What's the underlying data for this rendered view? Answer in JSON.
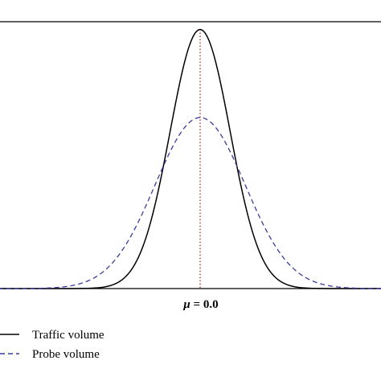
{
  "chart_data": {
    "type": "line",
    "title": "",
    "xlabel": "",
    "ylabel": "",
    "xlim": [
      -3.2,
      3.2
    ],
    "ylim": [
      0,
      1.03
    ],
    "grid": false,
    "annotation": {
      "mean_x": 0.0,
      "symbol": "μ",
      "text": " = 0.0",
      "line_style": "dotted",
      "color": "#8b1a1a"
    },
    "legend": {
      "position": "bottom-left"
    },
    "series": [
      {
        "name": "Traffic volume",
        "style": "solid",
        "color": "#000000",
        "distribution": {
          "mean": 0.0,
          "sd": 0.5,
          "peak": 1.0
        },
        "x": [
          -2.0,
          -1.5,
          -1.0,
          -0.75,
          -0.5,
          -0.25,
          0.0,
          0.25,
          0.5,
          0.75,
          1.0,
          1.5,
          2.0
        ],
        "y": [
          0.0003,
          0.011,
          0.135,
          0.325,
          0.607,
          0.882,
          1.0,
          0.882,
          0.607,
          0.325,
          0.135,
          0.011,
          0.0003
        ]
      },
      {
        "name": "Probe volume",
        "style": "dashed",
        "color": "#3a3aa0",
        "distribution": {
          "mean": 0.0,
          "sd": 0.75,
          "peak": 0.66
        },
        "x": [
          -3.0,
          -2.0,
          -1.5,
          -1.0,
          -0.5,
          0.0,
          0.5,
          1.0,
          1.5,
          2.0,
          3.0
        ],
        "y": [
          0.0002,
          0.019,
          0.089,
          0.27,
          0.528,
          0.66,
          0.528,
          0.27,
          0.089,
          0.019,
          0.0002
        ]
      }
    ]
  }
}
